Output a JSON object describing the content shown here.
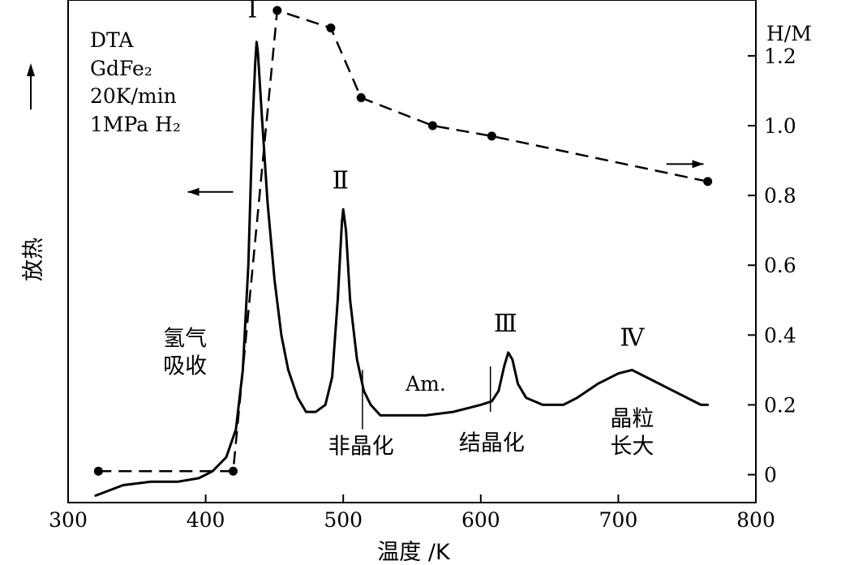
{
  "chart_data": {
    "type": "line",
    "xlabel": "温度 /K",
    "ylabel_left": "放热",
    "ylabel_right": "H/M",
    "xlim": [
      300,
      800
    ],
    "ylim_right": [
      -0.08,
      1.36
    ],
    "x_ticks": [
      300,
      400,
      500,
      600,
      700,
      800
    ],
    "y_ticks_right": [
      0,
      0.2,
      0.4,
      0.6,
      0.8,
      1.0,
      1.2
    ],
    "y_tick_labels_right": [
      "0",
      "0.2",
      "0.4",
      "0.6",
      "0.8",
      "1.0",
      "1.2"
    ],
    "legend_lines": [
      "DTA",
      "GdFe₂",
      "20K/min",
      "1MPa H₂"
    ],
    "series": [
      {
        "name": "DTA",
        "axis": "left",
        "style": "solid",
        "points": [
          [
            320,
            -0.06
          ],
          [
            340,
            -0.03
          ],
          [
            360,
            -0.02
          ],
          [
            380,
            -0.02
          ],
          [
            395,
            -0.01
          ],
          [
            405,
            0.01
          ],
          [
            415,
            0.05
          ],
          [
            422,
            0.13
          ],
          [
            427,
            0.3
          ],
          [
            431,
            0.6
          ],
          [
            434,
            1.0
          ],
          [
            436,
            1.18
          ],
          [
            437,
            1.24
          ],
          [
            438,
            1.21
          ],
          [
            441,
            1.02
          ],
          [
            445,
            0.78
          ],
          [
            450,
            0.56
          ],
          [
            455,
            0.4
          ],
          [
            460,
            0.3
          ],
          [
            467,
            0.22
          ],
          [
            473,
            0.18
          ],
          [
            480,
            0.18
          ],
          [
            487,
            0.2
          ],
          [
            492,
            0.28
          ],
          [
            496,
            0.5
          ],
          [
            499,
            0.72
          ],
          [
            500,
            0.76
          ],
          [
            502,
            0.7
          ],
          [
            505,
            0.5
          ],
          [
            510,
            0.33
          ],
          [
            515,
            0.24
          ],
          [
            520,
            0.2
          ],
          [
            527,
            0.17
          ],
          [
            540,
            0.17
          ],
          [
            560,
            0.17
          ],
          [
            580,
            0.18
          ],
          [
            600,
            0.2
          ],
          [
            608,
            0.21
          ],
          [
            613,
            0.24
          ],
          [
            617,
            0.31
          ],
          [
            620,
            0.35
          ],
          [
            623,
            0.33
          ],
          [
            627,
            0.26
          ],
          [
            633,
            0.22
          ],
          [
            645,
            0.2
          ],
          [
            660,
            0.2
          ],
          [
            670,
            0.22
          ],
          [
            685,
            0.26
          ],
          [
            700,
            0.29
          ],
          [
            710,
            0.3
          ],
          [
            720,
            0.28
          ],
          [
            740,
            0.24
          ],
          [
            760,
            0.2
          ],
          [
            765,
            0.2
          ]
        ]
      },
      {
        "name": "H/M",
        "axis": "right",
        "style": "dashed",
        "points": [
          [
            322,
            0.01
          ],
          [
            420,
            0.01
          ],
          [
            452,
            1.33
          ],
          [
            491,
            1.28
          ],
          [
            513,
            1.08
          ],
          [
            565,
            1.0
          ],
          [
            608,
            0.97
          ],
          [
            765,
            0.84
          ]
        ]
      }
    ],
    "peak_labels": [
      {
        "text": "Ⅰ",
        "x": 434,
        "y": 1.31
      },
      {
        "text": "Ⅱ",
        "x": 498,
        "y": 0.82
      },
      {
        "text": "Ⅲ",
        "x": 618,
        "y": 0.41
      },
      {
        "text": "Ⅳ",
        "x": 710,
        "y": 0.37
      }
    ],
    "divider_lines": [
      {
        "x": 514,
        "y1": 0.13,
        "y2": 0.3
      },
      {
        "x": 607,
        "y1": 0.18,
        "y2": 0.31
      }
    ],
    "annotations": [
      {
        "lines": [
          "氢气",
          "吸收"
        ],
        "x": 385,
        "y": 0.37,
        "anchor": "middle",
        "lang": "cn"
      },
      {
        "lines": [
          "Am."
        ],
        "x": 560,
        "y": 0.24,
        "anchor": "middle",
        "lang": "en"
      },
      {
        "lines": [
          "非晶化"
        ],
        "x": 513,
        "y": 0.06,
        "anchor": "middle",
        "lang": "cn"
      },
      {
        "lines": [
          "结晶化"
        ],
        "x": 608,
        "y": 0.07,
        "anchor": "middle",
        "lang": "cn"
      },
      {
        "lines": [
          "晶粒",
          "长大"
        ],
        "x": 710,
        "y": 0.14,
        "anchor": "middle",
        "lang": "cn"
      }
    ],
    "arrows": [
      {
        "direction": "left",
        "x_from": 420,
        "x_to": 387,
        "y": 0.81
      },
      {
        "direction": "right",
        "x_from": 735,
        "x_to": 762,
        "y": 0.89
      }
    ]
  }
}
